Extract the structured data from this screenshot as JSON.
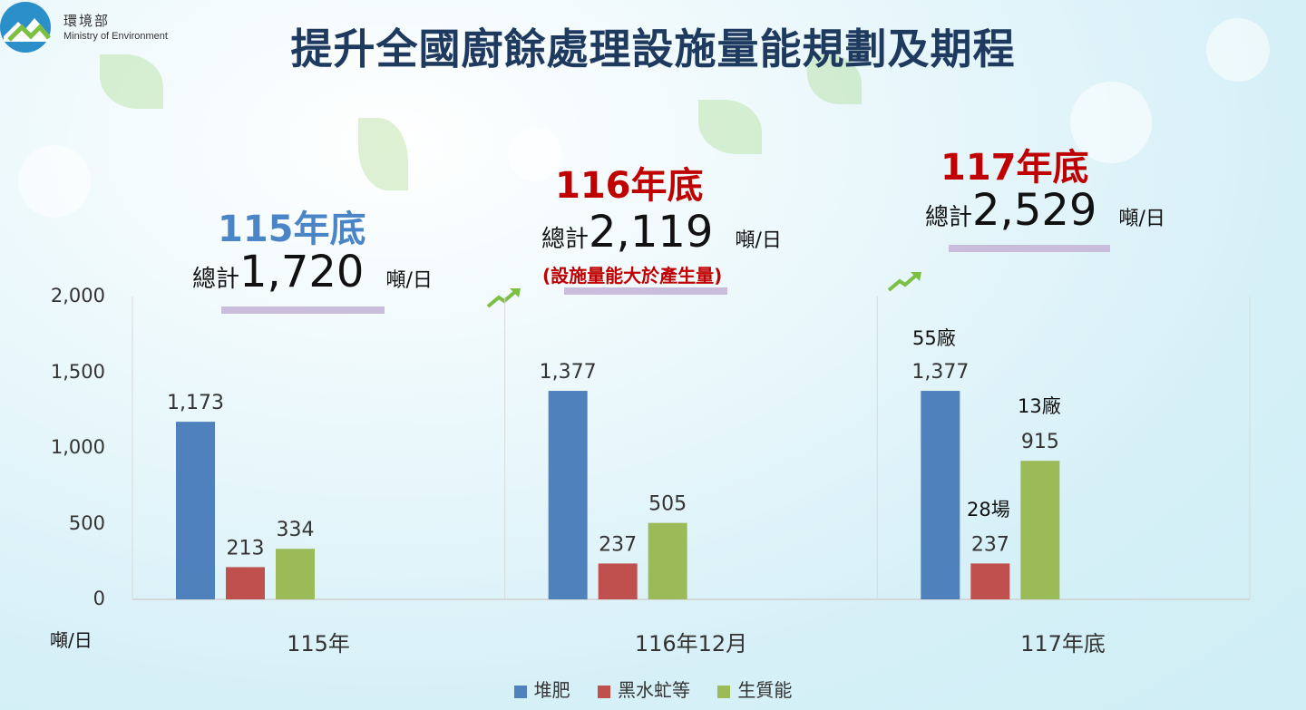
{
  "header": {
    "org_name_cn": "環境部",
    "org_name_en": "Ministry of Environment",
    "title": "提升全國廚餘處理設施量能規劃及期程"
  },
  "colors": {
    "compost": "#4f81bd",
    "bsf": "#c0504d",
    "bioenergy": "#9bbb59",
    "title": "#1f3a5f",
    "accent_blue": "#4a86c7",
    "accent_red": "#c00000"
  },
  "periods": [
    {
      "heading": "115年底",
      "total_label": "總計",
      "total_value": "1,720",
      "unit": "噸/日",
      "note": ""
    },
    {
      "heading": "116年底",
      "total_label": "總計",
      "total_value": "2,119",
      "unit": "噸/日",
      "note": "(設施量能大於產生量)"
    },
    {
      "heading": "117年底",
      "total_label": "總計",
      "total_value": "2,529",
      "unit": "噸/日",
      "note": ""
    }
  ],
  "annotations": {
    "compost_117": "55廠",
    "bioenergy_117": "13廠",
    "bsf_117": "28場"
  },
  "chart_data": {
    "type": "bar",
    "categories": [
      "115年",
      "116年12月",
      "117年底"
    ],
    "series": [
      {
        "name": "堆肥",
        "values": [
          1173,
          1377,
          1377
        ]
      },
      {
        "name": "黑水虻等",
        "values": [
          213,
          237,
          237
        ]
      },
      {
        "name": "生質能",
        "values": [
          334,
          505,
          915
        ]
      }
    ],
    "data_labels": [
      [
        "1,173",
        "1,377",
        "1,377"
      ],
      [
        "213",
        "237",
        "237"
      ],
      [
        "334",
        "505",
        "915"
      ]
    ],
    "yticks": [
      "0",
      "500",
      "1,000",
      "1,500",
      "2,000"
    ],
    "ylabel": "噸/日",
    "ylim": [
      0,
      2000
    ],
    "legend_position": "bottom",
    "grid": false
  }
}
